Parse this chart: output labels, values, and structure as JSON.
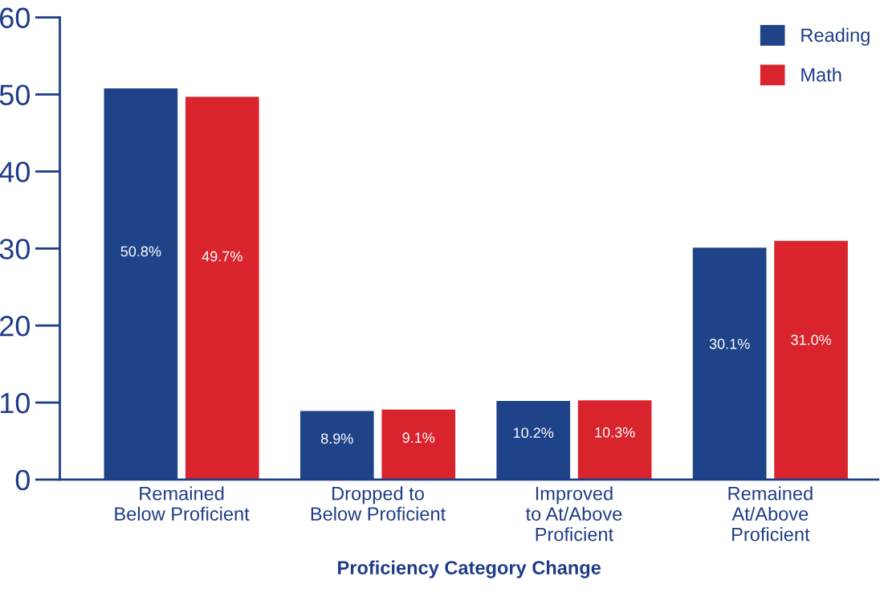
{
  "chart_data": {
    "type": "bar",
    "xlabel": "Proficiency Category Change",
    "categories": [
      "Remained\nBelow Proficient",
      "Dropped to\nBelow Proficient",
      "Improved\nto At/Above\nProficient",
      "Remained\nAt/Above\nProficient"
    ],
    "series": [
      {
        "name": "Reading",
        "color": "#1f4388",
        "values": [
          50.8,
          8.9,
          10.2,
          30.1
        ],
        "value_labels": [
          "50.8%",
          "8.9%",
          "10.2%",
          "30.1%"
        ]
      },
      {
        "name": "Math",
        "color": "#d9242e",
        "values": [
          49.7,
          9.1,
          10.3,
          31.0
        ],
        "value_labels": [
          "49.7%",
          "9.1%",
          "10.3%",
          "31.0%"
        ]
      }
    ],
    "ylim": [
      0,
      60
    ],
    "yticks": [
      0,
      10,
      20,
      30,
      40,
      50,
      60
    ],
    "grid": false,
    "legend": "top right"
  }
}
